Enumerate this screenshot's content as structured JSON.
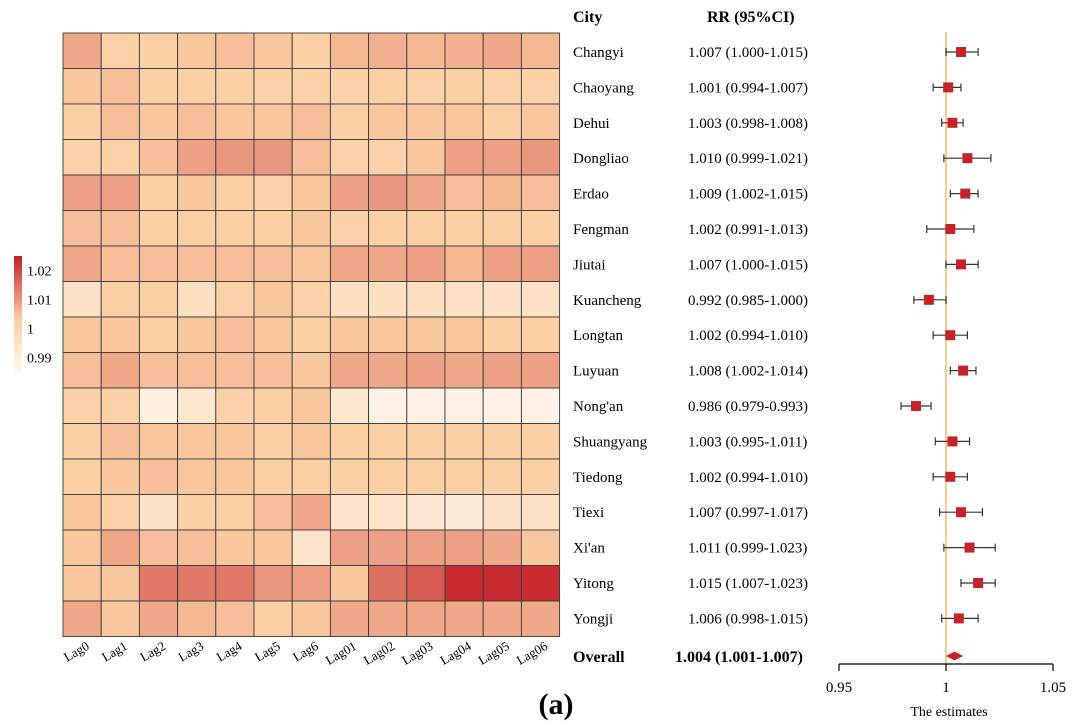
{
  "chart_data": [
    {
      "type": "heatmap",
      "columns": [
        "Lag0",
        "Lag1",
        "Lag2",
        "Lag3",
        "Lag4",
        "Lag5",
        "Lag6",
        "Lag01",
        "Lag02",
        "Lag03",
        "Lag04",
        "Lag05",
        "Lag06"
      ],
      "rows": [
        "Changyi",
        "Chaoyang",
        "Dehui",
        "Dongliao",
        "Erdao",
        "Fengman",
        "Jiutai",
        "Kuancheng",
        "Longtan",
        "Luyuan",
        "Nong'an",
        "Shuangyang",
        "Tiedong",
        "Tiexi",
        "Xi'an",
        "Yitong",
        "Yongji"
      ],
      "values": [
        [
          1.008,
          1.002,
          1.003,
          1.004,
          1.005,
          1.004,
          1.003,
          1.006,
          1.007,
          1.006,
          1.007,
          1.008,
          1.006
        ],
        [
          1.004,
          1.005,
          1.003,
          1.003,
          1.003,
          1.002,
          1.002,
          1.002,
          1.003,
          1.002,
          1.003,
          1.002,
          1.002
        ],
        [
          1.003,
          1.005,
          1.004,
          1.005,
          1.004,
          1.004,
          1.005,
          1.003,
          1.004,
          1.004,
          1.004,
          1.003,
          1.004
        ],
        [
          1.002,
          1.002,
          1.005,
          1.009,
          1.01,
          1.01,
          1.005,
          1.002,
          1.002,
          1.004,
          1.009,
          1.009,
          1.01
        ],
        [
          1.009,
          1.009,
          1.003,
          1.004,
          1.003,
          1.002,
          1.004,
          1.009,
          1.01,
          1.008,
          1.005,
          1.006,
          1.005
        ],
        [
          1.005,
          1.005,
          1.003,
          1.003,
          1.003,
          1.003,
          1.004,
          1.002,
          1.003,
          1.003,
          1.003,
          1.003,
          1.003
        ],
        [
          1.008,
          1.005,
          1.005,
          1.005,
          1.005,
          1.005,
          1.004,
          1.008,
          1.008,
          1.009,
          1.006,
          1.009,
          1.009
        ],
        [
          0.995,
          1.003,
          1.003,
          0.996,
          1.002,
          1.004,
          1.002,
          0.996,
          0.996,
          0.996,
          0.995,
          0.995,
          0.995
        ],
        [
          1.004,
          1.004,
          1.003,
          1.004,
          1.005,
          1.004,
          1.003,
          1.004,
          1.004,
          1.004,
          1.004,
          1.003,
          1.003
        ],
        [
          1.005,
          1.008,
          1.005,
          1.005,
          1.005,
          1.005,
          1.004,
          1.008,
          1.008,
          1.009,
          1.008,
          1.009,
          1.009
        ],
        [
          1.002,
          1.002,
          0.989,
          0.993,
          1.002,
          1.003,
          1.004,
          0.993,
          0.988,
          0.988,
          0.988,
          0.988,
          0.988
        ],
        [
          1.003,
          1.005,
          1.004,
          1.004,
          1.004,
          1.003,
          1.004,
          1.003,
          1.003,
          1.003,
          1.003,
          1.003,
          1.003
        ],
        [
          1.003,
          1.004,
          1.005,
          1.004,
          1.004,
          1.003,
          1.003,
          1.003,
          1.003,
          1.003,
          1.003,
          1.003,
          1.003
        ],
        [
          1.004,
          1.002,
          0.995,
          1.003,
          1.003,
          1.005,
          1.008,
          0.994,
          0.994,
          0.992,
          0.991,
          0.995,
          0.995
        ],
        [
          1.004,
          1.008,
          1.005,
          1.005,
          1.004,
          1.004,
          0.994,
          1.009,
          1.009,
          1.009,
          1.009,
          1.008,
          1.004
        ],
        [
          1.004,
          1.004,
          1.014,
          1.014,
          1.014,
          1.01,
          1.009,
          1.004,
          1.015,
          1.018,
          1.024,
          1.024,
          1.024
        ],
        [
          1.008,
          1.004,
          1.008,
          1.006,
          1.005,
          1.003,
          1.004,
          1.008,
          1.008,
          1.008,
          1.008,
          1.008,
          1.008
        ]
      ],
      "legend_ticks": [
        "1.02",
        "1.01",
        "1",
        "0.99"
      ],
      "scale_min": 0.985,
      "scale_max": 1.025,
      "colors": {
        "low": "#fff8f2",
        "mid": "#fccfa4",
        "high": "#c4232a",
        "border": "#3a3a3a"
      }
    },
    {
      "type": "forest",
      "header_city": "City",
      "header_rr": "RR (95%CI)",
      "rows": [
        {
          "city": "Changyi",
          "rr_text": "1.007 (1.000-1.015)",
          "est": 1.007,
          "lo": 1.0,
          "hi": 1.015
        },
        {
          "city": "Chaoyang",
          "rr_text": "1.001 (0.994-1.007)",
          "est": 1.001,
          "lo": 0.994,
          "hi": 1.007
        },
        {
          "city": "Dehui",
          "rr_text": "1.003 (0.998-1.008)",
          "est": 1.003,
          "lo": 0.998,
          "hi": 1.008
        },
        {
          "city": "Dongliao",
          "rr_text": "1.010 (0.999-1.021)",
          "est": 1.01,
          "lo": 0.999,
          "hi": 1.021
        },
        {
          "city": "Erdao",
          "rr_text": "1.009 (1.002-1.015)",
          "est": 1.009,
          "lo": 1.002,
          "hi": 1.015
        },
        {
          "city": "Fengman",
          "rr_text": "1.002 (0.991-1.013)",
          "est": 1.002,
          "lo": 0.991,
          "hi": 1.013
        },
        {
          "city": "Jiutai",
          "rr_text": "1.007 (1.000-1.015)",
          "est": 1.007,
          "lo": 1.0,
          "hi": 1.015
        },
        {
          "city": "Kuancheng",
          "rr_text": "0.992 (0.985-1.000)",
          "est": 0.992,
          "lo": 0.985,
          "hi": 1.0
        },
        {
          "city": "Longtan",
          "rr_text": "1.002 (0.994-1.010)",
          "est": 1.002,
          "lo": 0.994,
          "hi": 1.01
        },
        {
          "city": "Luyuan",
          "rr_text": "1.008 (1.002-1.014)",
          "est": 1.008,
          "lo": 1.002,
          "hi": 1.014
        },
        {
          "city": "Nong'an",
          "rr_text": "0.986 (0.979-0.993)",
          "est": 0.986,
          "lo": 0.979,
          "hi": 0.993
        },
        {
          "city": "Shuangyang",
          "rr_text": "1.003 (0.995-1.011)",
          "est": 1.003,
          "lo": 0.995,
          "hi": 1.011
        },
        {
          "city": "Tiedong",
          "rr_text": "1.002 (0.994-1.010)",
          "est": 1.002,
          "lo": 0.994,
          "hi": 1.01
        },
        {
          "city": "Tiexi",
          "rr_text": "1.007 (0.997-1.017)",
          "est": 1.007,
          "lo": 0.997,
          "hi": 1.017
        },
        {
          "city": "Xi'an",
          "rr_text": "1.011 (0.999-1.023)",
          "est": 1.011,
          "lo": 0.999,
          "hi": 1.023
        },
        {
          "city": "Yitong",
          "rr_text": "1.015 (1.007-1.023)",
          "est": 1.015,
          "lo": 1.007,
          "hi": 1.023
        },
        {
          "city": "Yongji",
          "rr_text": "1.006 (0.998-1.015)",
          "est": 1.006,
          "lo": 0.998,
          "hi": 1.015
        }
      ],
      "overall": {
        "label": "Overall",
        "rr_text": "1.004 (1.001-1.007)",
        "est": 1.004,
        "lo": 1.001,
        "hi": 1.007
      },
      "xlim": [
        0.95,
        1.05
      ],
      "xticks": [
        "0.95",
        "1",
        "1.05"
      ],
      "xlabel": "The estimates",
      "reference": 1,
      "colors": {
        "marker": "#c4232a",
        "reference_line": "#f5c16c",
        "axis": "#000000"
      }
    }
  ],
  "figure_label": "(a)"
}
